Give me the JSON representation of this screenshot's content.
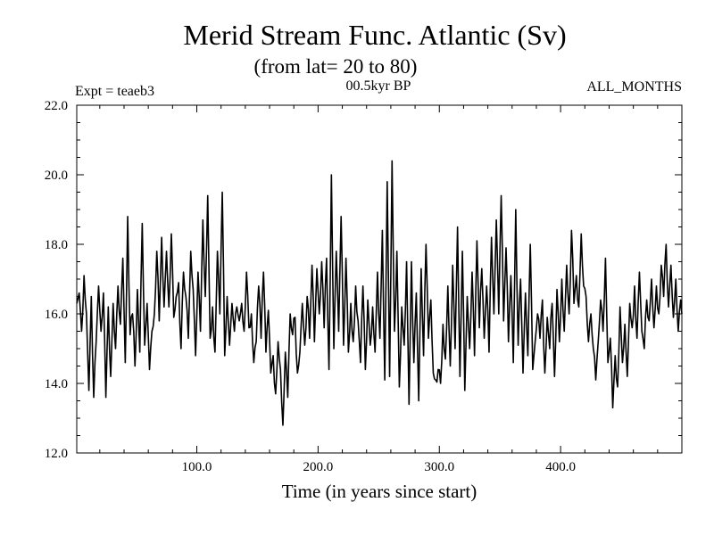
{
  "chart_data": {
    "type": "line",
    "title": "Merid Stream Func. Atlantic (Sv)",
    "subtitle": "(from lat= 20 to 80)",
    "experiment_label": "Expt = teaeb3",
    "period_label": "00.5kyr BP",
    "months_label": "ALL_MONTHS",
    "xlabel": "Time (in years since start)",
    "ylabel": "",
    "xlim": [
      1,
      500
    ],
    "ylim": [
      12.0,
      22.0
    ],
    "x_ticks": [
      100,
      200,
      300,
      400
    ],
    "x_tick_labels": [
      "100.0",
      "200.0",
      "300.0",
      "400.0"
    ],
    "y_ticks": [
      12,
      14,
      16,
      18,
      20,
      22
    ],
    "y_tick_labels": [
      "12.0",
      "14.0",
      "16.0",
      "18.0",
      "20.0",
      "22.0"
    ],
    "x_minor_step": 20,
    "y_minor_step": 0.5,
    "series": [
      {
        "name": "Merid Stream Func. Atlantic",
        "anchors": [
          [
            1,
            16.3
          ],
          [
            3,
            16.6
          ],
          [
            5,
            15.5
          ],
          [
            7,
            17.1
          ],
          [
            9,
            16.0
          ],
          [
            11,
            13.8
          ],
          [
            13,
            16.5
          ],
          [
            15,
            13.6
          ],
          [
            17,
            15.2
          ],
          [
            19,
            16.8
          ],
          [
            21,
            15.5
          ],
          [
            23,
            16.6
          ],
          [
            25,
            13.6
          ],
          [
            27,
            16.2
          ],
          [
            29,
            14.2
          ],
          [
            31,
            16.3
          ],
          [
            33,
            15.0
          ],
          [
            35,
            16.8
          ],
          [
            37,
            15.7
          ],
          [
            39,
            17.6
          ],
          [
            41,
            14.6
          ],
          [
            43,
            18.8
          ],
          [
            45,
            15.4
          ],
          [
            47,
            16.0
          ],
          [
            49,
            14.5
          ],
          [
            51,
            16.7
          ],
          [
            53,
            14.9
          ],
          [
            55,
            18.6
          ],
          [
            57,
            15.1
          ],
          [
            59,
            16.3
          ],
          [
            61,
            14.4
          ],
          [
            63,
            15.5
          ],
          [
            65,
            16.0
          ],
          [
            67,
            17.8
          ],
          [
            69,
            15.8
          ],
          [
            71,
            18.2
          ],
          [
            73,
            16.2
          ],
          [
            75,
            17.8
          ],
          [
            77,
            16.2
          ],
          [
            79,
            18.3
          ],
          [
            81,
            15.9
          ],
          [
            83,
            16.5
          ],
          [
            85,
            16.9
          ],
          [
            87,
            15.0
          ],
          [
            89,
            17.2
          ],
          [
            91,
            16.5
          ],
          [
            93,
            15.3
          ],
          [
            95,
            17.8
          ],
          [
            97,
            16.7
          ],
          [
            99,
            14.8
          ],
          [
            101,
            17.2
          ],
          [
            103,
            15.5
          ],
          [
            105,
            18.7
          ],
          [
            107,
            16.5
          ],
          [
            109,
            19.4
          ],
          [
            111,
            15.3
          ],
          [
            113,
            16.2
          ],
          [
            115,
            14.9
          ],
          [
            117,
            17.8
          ],
          [
            119,
            16.0
          ],
          [
            121,
            19.5
          ],
          [
            123,
            14.8
          ],
          [
            125,
            16.5
          ],
          [
            127,
            15.1
          ],
          [
            129,
            16.3
          ],
          [
            131,
            15.5
          ],
          [
            133,
            16.2
          ],
          [
            135,
            15.8
          ],
          [
            137,
            16.3
          ],
          [
            139,
            15.5
          ],
          [
            141,
            17.2
          ],
          [
            143,
            15.6
          ],
          [
            145,
            16.0
          ],
          [
            147,
            14.6
          ],
          [
            149,
            15.2
          ],
          [
            151,
            16.8
          ],
          [
            153,
            15.3
          ],
          [
            155,
            17.2
          ],
          [
            157,
            14.9
          ],
          [
            159,
            16.1
          ],
          [
            161,
            14.3
          ],
          [
            163,
            14.8
          ],
          [
            165,
            13.7
          ],
          [
            167,
            15.2
          ],
          [
            169,
            14.4
          ],
          [
            171,
            12.8
          ],
          [
            173,
            14.9
          ],
          [
            175,
            13.6
          ],
          [
            177,
            16.0
          ],
          [
            179,
            15.4
          ],
          [
            181,
            15.9
          ],
          [
            183,
            14.3
          ],
          [
            185,
            14.9
          ],
          [
            187,
            16.3
          ],
          [
            189,
            15.1
          ],
          [
            191,
            16.5
          ],
          [
            193,
            15.3
          ],
          [
            195,
            17.4
          ],
          [
            197,
            15.2
          ],
          [
            199,
            17.3
          ],
          [
            201,
            16.0
          ],
          [
            203,
            17.5
          ],
          [
            205,
            15.6
          ],
          [
            207,
            17.6
          ],
          [
            209,
            14.4
          ],
          [
            211,
            20.0
          ],
          [
            213,
            15.0
          ],
          [
            215,
            17.8
          ],
          [
            217,
            15.5
          ],
          [
            219,
            18.8
          ],
          [
            221,
            15.1
          ],
          [
            223,
            17.6
          ],
          [
            225,
            14.9
          ],
          [
            227,
            16.3
          ],
          [
            229,
            15.2
          ],
          [
            231,
            16.8
          ],
          [
            233,
            15.8
          ],
          [
            235,
            14.6
          ],
          [
            237,
            16.8
          ],
          [
            239,
            14.4
          ],
          [
            241,
            16.4
          ],
          [
            243,
            15.1
          ],
          [
            245,
            16.2
          ],
          [
            247,
            14.9
          ],
          [
            249,
            17.2
          ],
          [
            251,
            15.3
          ],
          [
            253,
            18.4
          ],
          [
            255,
            14.1
          ],
          [
            257,
            19.8
          ],
          [
            259,
            14.2
          ],
          [
            261,
            20.4
          ],
          [
            263,
            15.5
          ],
          [
            265,
            17.8
          ],
          [
            267,
            13.9
          ],
          [
            269,
            16.2
          ],
          [
            271,
            15.1
          ],
          [
            273,
            17.5
          ],
          [
            275,
            13.4
          ],
          [
            277,
            17.5
          ],
          [
            279,
            14.6
          ],
          [
            281,
            16.6
          ],
          [
            283,
            13.5
          ],
          [
            285,
            17.3
          ],
          [
            287,
            14.8
          ],
          [
            289,
            18.0
          ],
          [
            291,
            15.3
          ],
          [
            293,
            16.4
          ],
          [
            295,
            14.3
          ],
          [
            297,
            14.1
          ],
          [
            299,
            14.4
          ],
          [
            301,
            14.0
          ],
          [
            303,
            15.7
          ],
          [
            305,
            14.7
          ],
          [
            307,
            16.8
          ],
          [
            309,
            14.5
          ],
          [
            311,
            17.4
          ],
          [
            313,
            15.0
          ],
          [
            315,
            18.5
          ],
          [
            317,
            14.2
          ],
          [
            319,
            17.8
          ],
          [
            321,
            13.8
          ],
          [
            323,
            16.5
          ],
          [
            325,
            15.0
          ],
          [
            327,
            17.2
          ],
          [
            329,
            14.8
          ],
          [
            331,
            18.1
          ],
          [
            333,
            15.6
          ],
          [
            335,
            17.3
          ],
          [
            337,
            15.3
          ],
          [
            339,
            16.8
          ],
          [
            341,
            14.9
          ],
          [
            343,
            18.2
          ],
          [
            345,
            16.0
          ],
          [
            347,
            18.7
          ],
          [
            349,
            16.0
          ],
          [
            351,
            19.4
          ],
          [
            353,
            15.8
          ],
          [
            355,
            17.9
          ],
          [
            357,
            15.2
          ],
          [
            359,
            17.1
          ],
          [
            361,
            14.6
          ],
          [
            363,
            19.0
          ],
          [
            365,
            15.1
          ],
          [
            367,
            17.0
          ],
          [
            369,
            14.3
          ],
          [
            371,
            16.6
          ],
          [
            373,
            14.8
          ],
          [
            375,
            18.0
          ],
          [
            377,
            14.4
          ],
          [
            379,
            15.2
          ],
          [
            381,
            16.0
          ],
          [
            383,
            15.3
          ],
          [
            385,
            16.4
          ],
          [
            387,
            14.3
          ],
          [
            389,
            15.9
          ],
          [
            391,
            15.0
          ],
          [
            393,
            16.3
          ],
          [
            395,
            14.2
          ],
          [
            397,
            16.7
          ],
          [
            399,
            15.2
          ],
          [
            401,
            17.0
          ],
          [
            403,
            15.5
          ],
          [
            405,
            17.4
          ],
          [
            407,
            16.0
          ],
          [
            409,
            18.4
          ],
          [
            411,
            16.3
          ],
          [
            413,
            17.1
          ],
          [
            415,
            16.2
          ],
          [
            417,
            18.3
          ],
          [
            419,
            16.8
          ],
          [
            421,
            16.5
          ],
          [
            423,
            15.2
          ],
          [
            425,
            16.0
          ],
          [
            427,
            15.0
          ],
          [
            429,
            14.1
          ],
          [
            431,
            15.2
          ],
          [
            433,
            16.4
          ],
          [
            435,
            15.5
          ],
          [
            437,
            17.6
          ],
          [
            439,
            14.6
          ],
          [
            441,
            15.3
          ],
          [
            443,
            13.3
          ],
          [
            445,
            14.8
          ],
          [
            447,
            13.9
          ],
          [
            449,
            16.2
          ],
          [
            451,
            14.6
          ],
          [
            453,
            15.7
          ],
          [
            455,
            14.2
          ],
          [
            457,
            16.3
          ],
          [
            459,
            15.6
          ],
          [
            461,
            16.8
          ],
          [
            463,
            15.3
          ],
          [
            465,
            17.2
          ],
          [
            467,
            15.5
          ],
          [
            469,
            15.0
          ],
          [
            471,
            16.4
          ],
          [
            473,
            15.8
          ],
          [
            475,
            17.0
          ],
          [
            477,
            15.6
          ],
          [
            479,
            16.8
          ],
          [
            481,
            16.0
          ],
          [
            483,
            17.4
          ],
          [
            485,
            16.5
          ],
          [
            487,
            18.0
          ],
          [
            489,
            16.2
          ],
          [
            491,
            17.4
          ],
          [
            493,
            15.9
          ],
          [
            495,
            17.0
          ],
          [
            497,
            15.5
          ],
          [
            499,
            16.4
          ],
          [
            500,
            16.0
          ]
        ]
      }
    ]
  }
}
